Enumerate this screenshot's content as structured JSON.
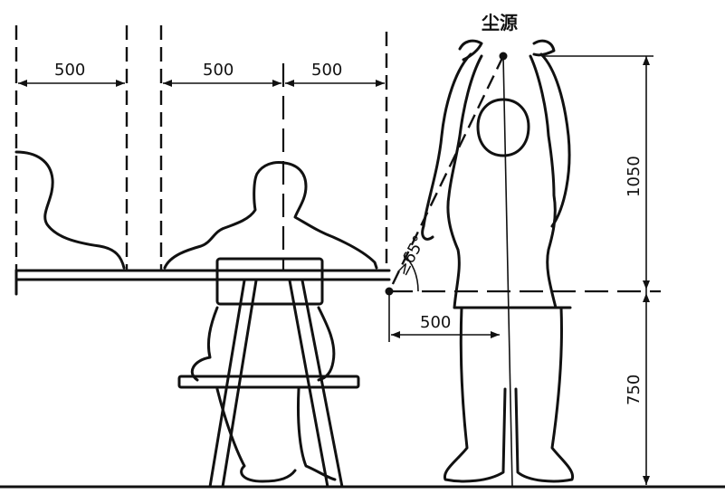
{
  "diagram": {
    "source_label": "尘源",
    "dimensions": {
      "left_gap": "500",
      "seat_left": "500",
      "seat_right": "500",
      "reach_height": "1050",
      "table_height": "750",
      "offset": "500"
    },
    "angle_label": "≥65°"
  }
}
